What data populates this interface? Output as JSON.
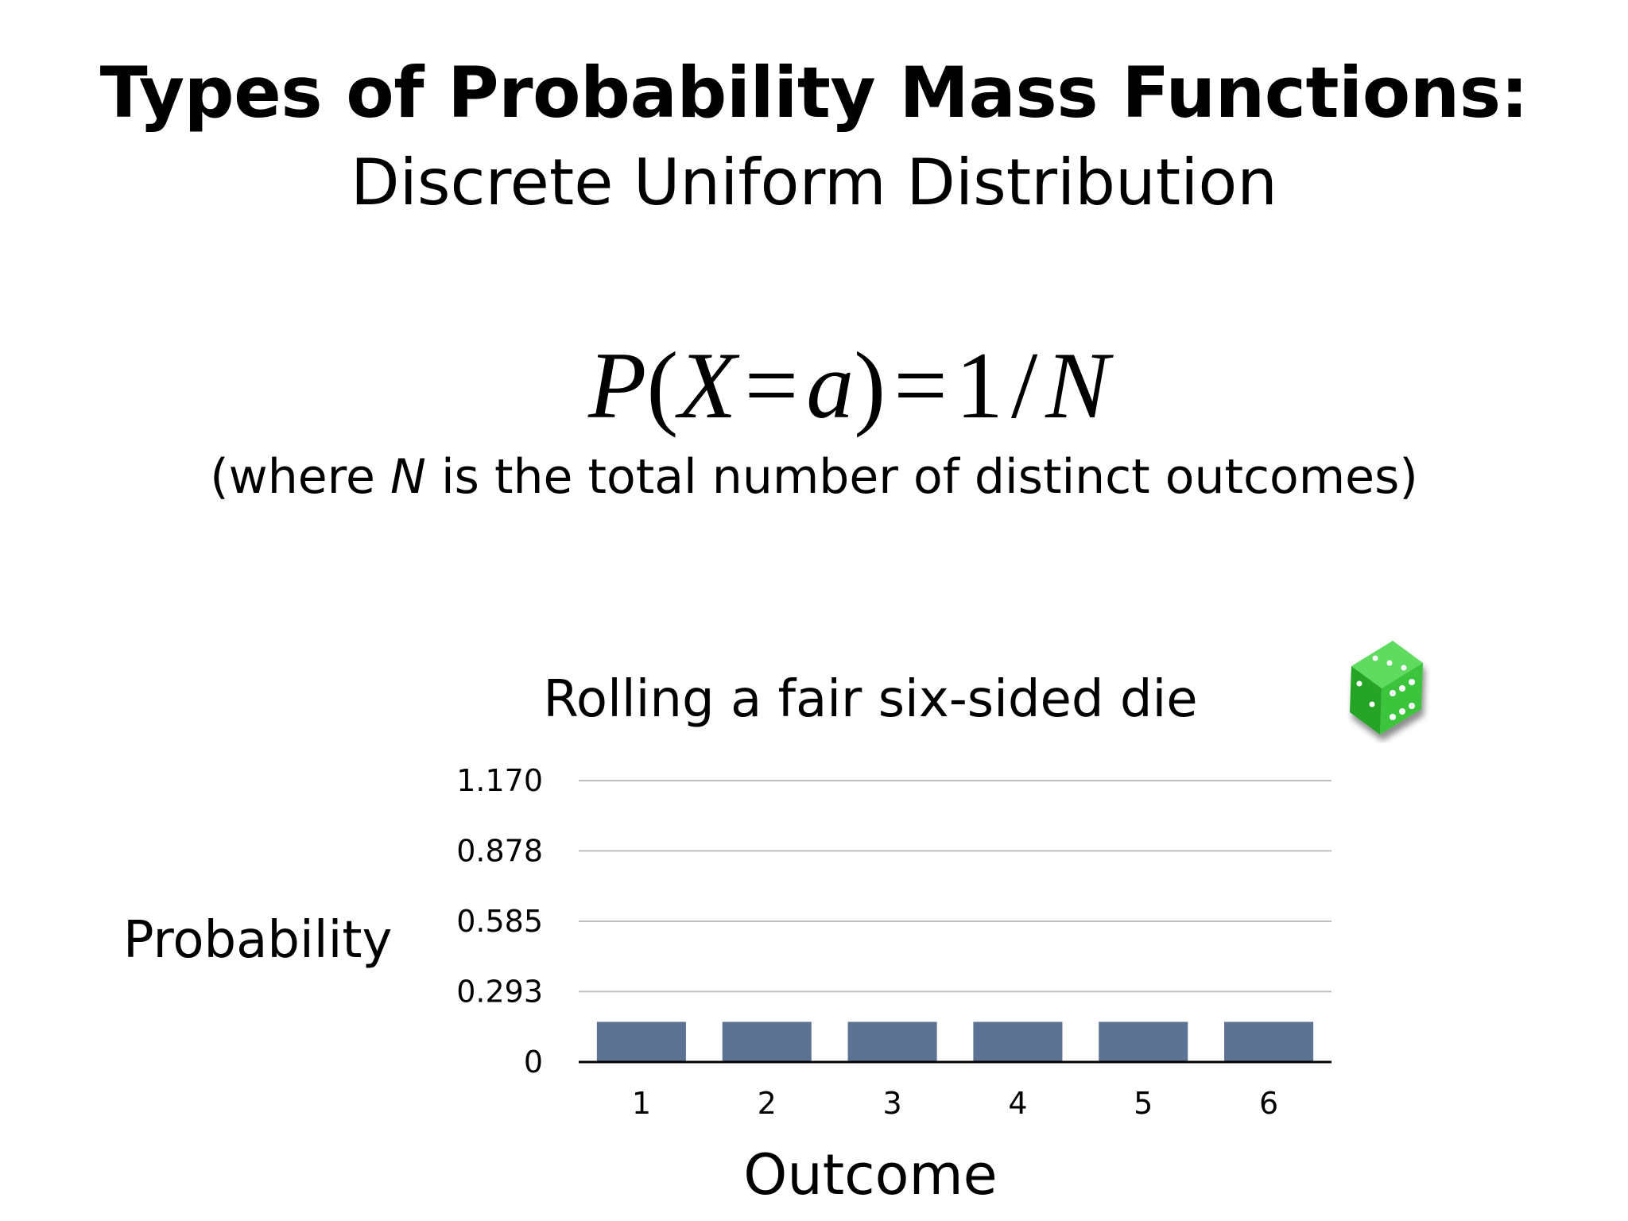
{
  "slide": {
    "title": "Types of Probability Mass Functions:",
    "subtitle": "Discrete Uniform Distribution"
  },
  "formula": {
    "p": "P",
    "open_paren": "(",
    "x": "X",
    "eq1": "=",
    "a": "a",
    "close_paren": ")",
    "eq2": "=",
    "one": "1",
    "slash": "/",
    "n": "N"
  },
  "formula_note": {
    "before": "(where ",
    "var": "N",
    "after": " is the total number of distinct outcomes)"
  },
  "die_icon": "green-die-icon",
  "colors": {
    "bar": "#5d7393",
    "gridline": "#bfbfbf",
    "axis": "#000000",
    "die_face": "#3ec43e"
  },
  "chart_data": {
    "type": "bar",
    "title": "Rolling a fair six-sided die",
    "xlabel": "Outcome",
    "ylabel": "Probability",
    "categories": [
      "1",
      "2",
      "3",
      "4",
      "5",
      "6"
    ],
    "values": [
      0.167,
      0.167,
      0.167,
      0.167,
      0.167,
      0.167
    ],
    "yticks": [
      0,
      0.293,
      0.585,
      0.878,
      1.17
    ],
    "ytick_labels": [
      "0",
      "0.293",
      "0.585",
      "0.878",
      "1.170"
    ],
    "ylim": [
      0,
      1.17
    ],
    "grid": true,
    "legend": "none"
  }
}
